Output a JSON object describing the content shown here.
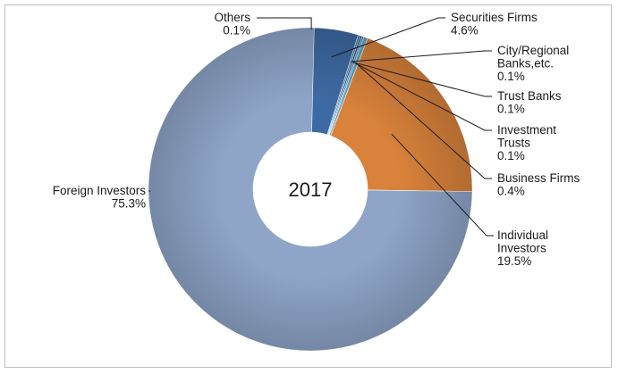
{
  "chart_data": {
    "type": "pie",
    "style": "donut",
    "center_label": "2017",
    "slices": [
      {
        "name": "Others",
        "value": 0.1,
        "value_label": "0.1%",
        "color": "#8EA5C8"
      },
      {
        "name": "Securities Firms",
        "value": 4.6,
        "value_label": "4.6%",
        "color": "#3E6AA3"
      },
      {
        "name": "City/Regional Banks,etc.",
        "value": 0.1,
        "value_label": "0.1%",
        "color": "#2E74B5"
      },
      {
        "name": "Trust Banks",
        "value": 0.1,
        "value_label": "0.1%",
        "color": "#1F4E79"
      },
      {
        "name": "Investment Trusts",
        "value": 0.1,
        "value_label": "0.1%",
        "color": "#4F81BD"
      },
      {
        "name": "Business Firms",
        "value": 0.4,
        "value_label": "0.4%",
        "color": "#5FA8C7"
      },
      {
        "name": "Individual Investors",
        "value": 19.5,
        "value_label": "19.5%",
        "color": "#D9823B"
      },
      {
        "name": "Foreign Investors",
        "value": 75.3,
        "value_label": "75.3%",
        "color": "#8EA5C8"
      }
    ]
  }
}
